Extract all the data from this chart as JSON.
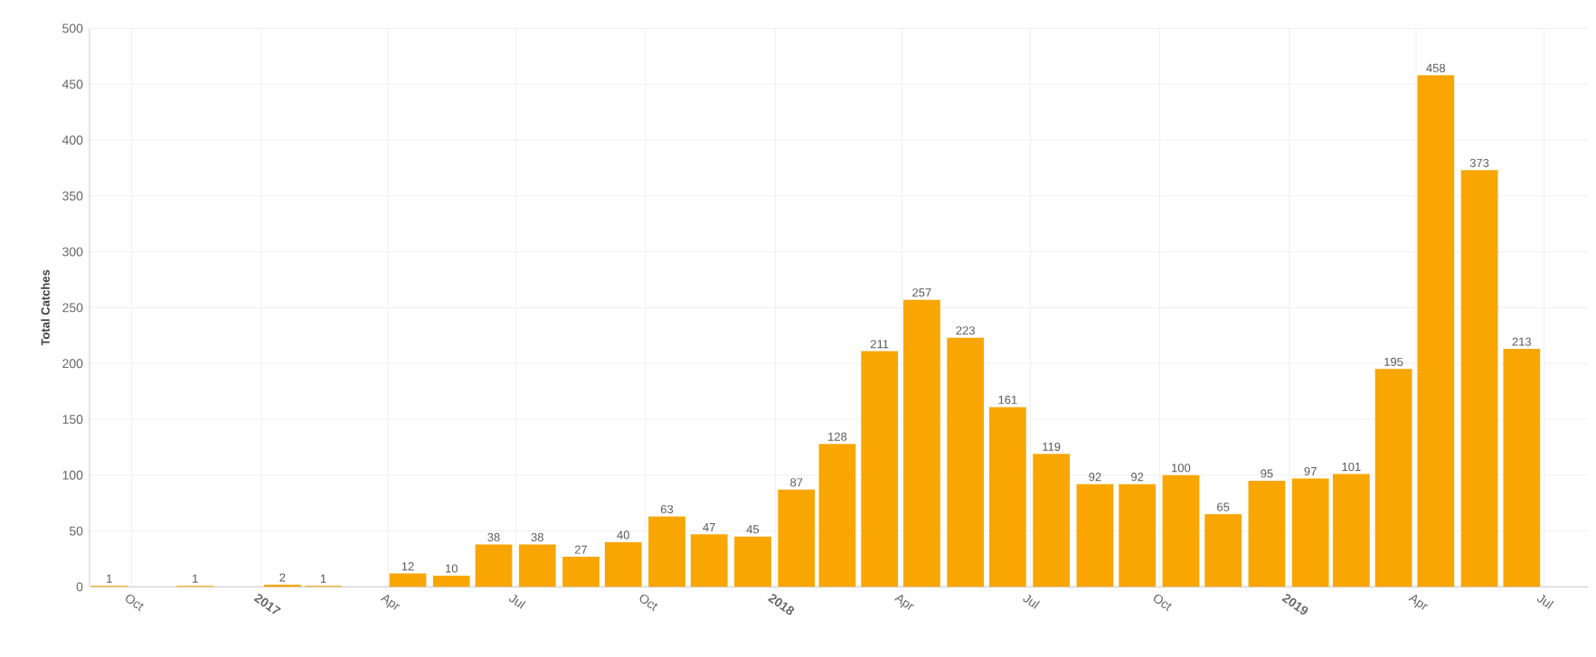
{
  "chart_data": {
    "type": "bar",
    "ylabel": "Total Catches",
    "x": [
      "2016-09-15",
      "2016-11-15",
      "2017-01-16",
      "2017-02-14",
      "2017-04-15",
      "2017-05-16",
      "2017-06-15",
      "2017-07-16",
      "2017-08-16",
      "2017-09-15",
      "2017-10-16",
      "2017-11-15",
      "2017-12-16",
      "2018-01-16",
      "2018-02-14",
      "2018-03-16",
      "2018-04-15",
      "2018-05-16",
      "2018-06-15",
      "2018-07-16",
      "2018-08-16",
      "2018-09-15",
      "2018-10-16",
      "2018-11-15",
      "2018-12-16",
      "2019-01-16",
      "2019-02-14",
      "2019-03-16",
      "2019-04-15",
      "2019-05-16",
      "2019-06-15"
    ],
    "values": [
      1,
      1,
      2,
      1,
      12,
      10,
      38,
      38,
      27,
      40,
      63,
      47,
      45,
      87,
      128,
      211,
      257,
      223,
      161,
      119,
      92,
      92,
      100,
      65,
      95,
      97,
      101,
      195,
      458,
      373,
      213
    ],
    "color": "#f9a603",
    "xlim": [
      "2016-09",
      "2019-08"
    ],
    "xticks": [
      {
        "value": "2016-10",
        "label": "Oct"
      },
      {
        "value": "2017-01",
        "label": "2017"
      },
      {
        "value": "2017-04",
        "label": "Apr"
      },
      {
        "value": "2017-07",
        "label": "Jul"
      },
      {
        "value": "2017-10",
        "label": "Oct"
      },
      {
        "value": "2018-01",
        "label": "2018"
      },
      {
        "value": "2018-04",
        "label": "Apr"
      },
      {
        "value": "2018-07",
        "label": "Jul"
      },
      {
        "value": "2018-10",
        "label": "Oct"
      },
      {
        "value": "2019-01",
        "label": "2019"
      },
      {
        "value": "2019-04",
        "label": "Apr"
      },
      {
        "value": "2019-07",
        "label": "Jul"
      }
    ],
    "ylim": [
      0,
      500
    ],
    "yticks": [
      0,
      50,
      100,
      150,
      200,
      250,
      300,
      350,
      400,
      450,
      500
    ],
    "grid": true,
    "data_labels": true
  }
}
